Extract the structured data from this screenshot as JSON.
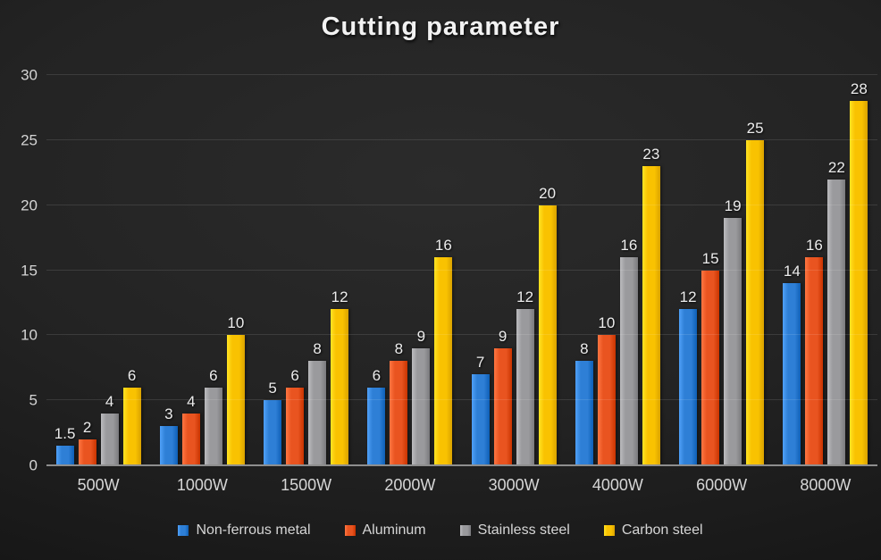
{
  "title": "Cutting parameter",
  "chart_data": {
    "type": "bar",
    "title": "Cutting parameter",
    "categories": [
      "500W",
      "1000W",
      "1500W",
      "2000W",
      "3000W",
      "4000W",
      "6000W",
      "8000W"
    ],
    "series": [
      {
        "name": "Non-ferrous metal",
        "color": "#2e7fd6",
        "values": [
          1.5,
          3,
          5,
          6,
          7,
          8,
          12,
          14
        ]
      },
      {
        "name": "Aluminum",
        "color": "#e95420",
        "values": [
          2,
          4,
          6,
          8,
          9,
          10,
          15,
          16
        ]
      },
      {
        "name": "Stainless steel",
        "color": "#9a9a9d",
        "values": [
          4,
          6,
          8,
          9,
          12,
          16,
          19,
          22
        ]
      },
      {
        "name": "Carbon steel",
        "color": "#f9c201",
        "values": [
          6,
          10,
          12,
          16,
          20,
          23,
          25,
          28
        ]
      }
    ],
    "xlabel": "",
    "ylabel": "",
    "ylim": [
      0,
      30
    ],
    "yticks": [
      0,
      5,
      10,
      15,
      20,
      25,
      30
    ],
    "grid": true,
    "legend_position": "bottom",
    "value_labels": true
  }
}
